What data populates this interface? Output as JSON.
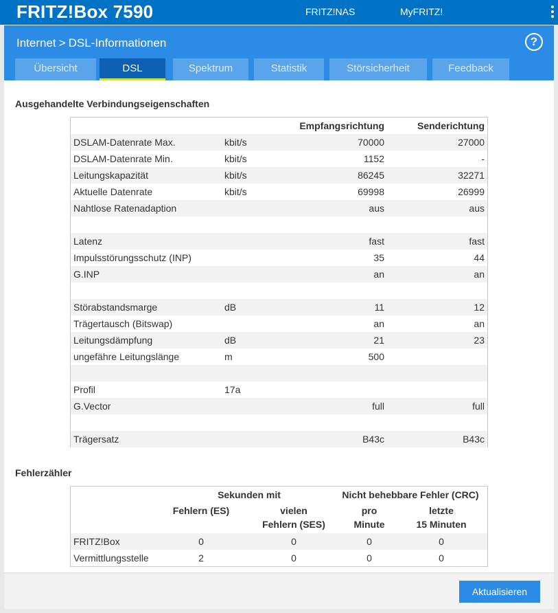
{
  "header": {
    "brand": "FRITZ!Box 7590",
    "links": [
      "FRITZ!NAS",
      "MyFRITZ!"
    ]
  },
  "breadcrumb": {
    "parent": "Internet",
    "separator": ">",
    "current": "DSL-Informationen"
  },
  "help_symbol": "?",
  "tabs": [
    {
      "label": "Übersicht",
      "active": false
    },
    {
      "label": "DSL",
      "active": true
    },
    {
      "label": "Spektrum",
      "active": false
    },
    {
      "label": "Statistik",
      "active": false
    },
    {
      "label": "Störsicherheit",
      "active": false
    },
    {
      "label": "Feedback",
      "active": false
    }
  ],
  "connection": {
    "title": "Ausgehandelte Verbindungseigenschaften",
    "col_down": "Empfangsrichtung",
    "col_up": "Senderichtung",
    "rows": [
      {
        "label": "DSLAM-Datenrate Max.",
        "unit": "kbit/s",
        "down": "70000",
        "up": "27000"
      },
      {
        "label": "DSLAM-Datenrate Min.",
        "unit": "kbit/s",
        "down": "1152",
        "up": "-"
      },
      {
        "label": "Leitungskapazität",
        "unit": "kbit/s",
        "down": "86245",
        "up": "32271"
      },
      {
        "label": "Aktuelle Datenrate",
        "unit": "kbit/s",
        "down": "69998",
        "up": "26999"
      },
      {
        "label": "Nahtlose Ratenadaption",
        "unit": "",
        "down": "aus",
        "up": "aus"
      },
      {
        "label": "",
        "unit": "",
        "down": "",
        "up": ""
      },
      {
        "label": "Latenz",
        "unit": "",
        "down": "fast",
        "up": "fast"
      },
      {
        "label": "Impulsstörungsschutz (INP)",
        "unit": "",
        "down": "35",
        "up": "44"
      },
      {
        "label": "G.INP",
        "unit": "",
        "down": "an",
        "up": "an"
      },
      {
        "label": "",
        "unit": "",
        "down": "",
        "up": ""
      },
      {
        "label": "Störabstandsmarge",
        "unit": "dB",
        "down": "11",
        "up": "12"
      },
      {
        "label": "Trägertausch (Bitswap)",
        "unit": "",
        "down": "an",
        "up": "an"
      },
      {
        "label": "Leitungsdämpfung",
        "unit": "dB",
        "down": "21",
        "up": "23"
      },
      {
        "label": "ungefähre Leitungslänge",
        "unit": "m",
        "down": "500",
        "up": ""
      },
      {
        "label": "",
        "unit": "",
        "down": "",
        "up": ""
      },
      {
        "label": "Profil",
        "unit": "17a",
        "down": "",
        "up": ""
      },
      {
        "label": "G.Vector",
        "unit": "",
        "down": "full",
        "up": "full"
      },
      {
        "label": "",
        "unit": "",
        "down": "",
        "up": ""
      },
      {
        "label": "Trägersatz",
        "unit": "",
        "down": "B43c",
        "up": "B43c"
      }
    ]
  },
  "errors": {
    "title": "Fehlerzähler",
    "group_seconds": "Sekunden mit",
    "group_crc": "Nicht behebbare Fehler (CRC)",
    "col_es": "Fehlern (ES)",
    "col_ses_1": "vielen",
    "col_ses_2": "Fehlern (SES)",
    "col_pro_1": "pro",
    "col_pro_2": "Minute",
    "col_last_1": "letzte",
    "col_last_2": "15 Minuten",
    "rows": [
      {
        "label": "FRITZ!Box",
        "es": "0",
        "ses": "0",
        "pro": "0",
        "last": "0"
      },
      {
        "label": "Vermittlungsstelle",
        "es": "2",
        "ses": "0",
        "pro": "0",
        "last": "0"
      }
    ]
  },
  "footer": {
    "button": "Aktualisieren"
  }
}
